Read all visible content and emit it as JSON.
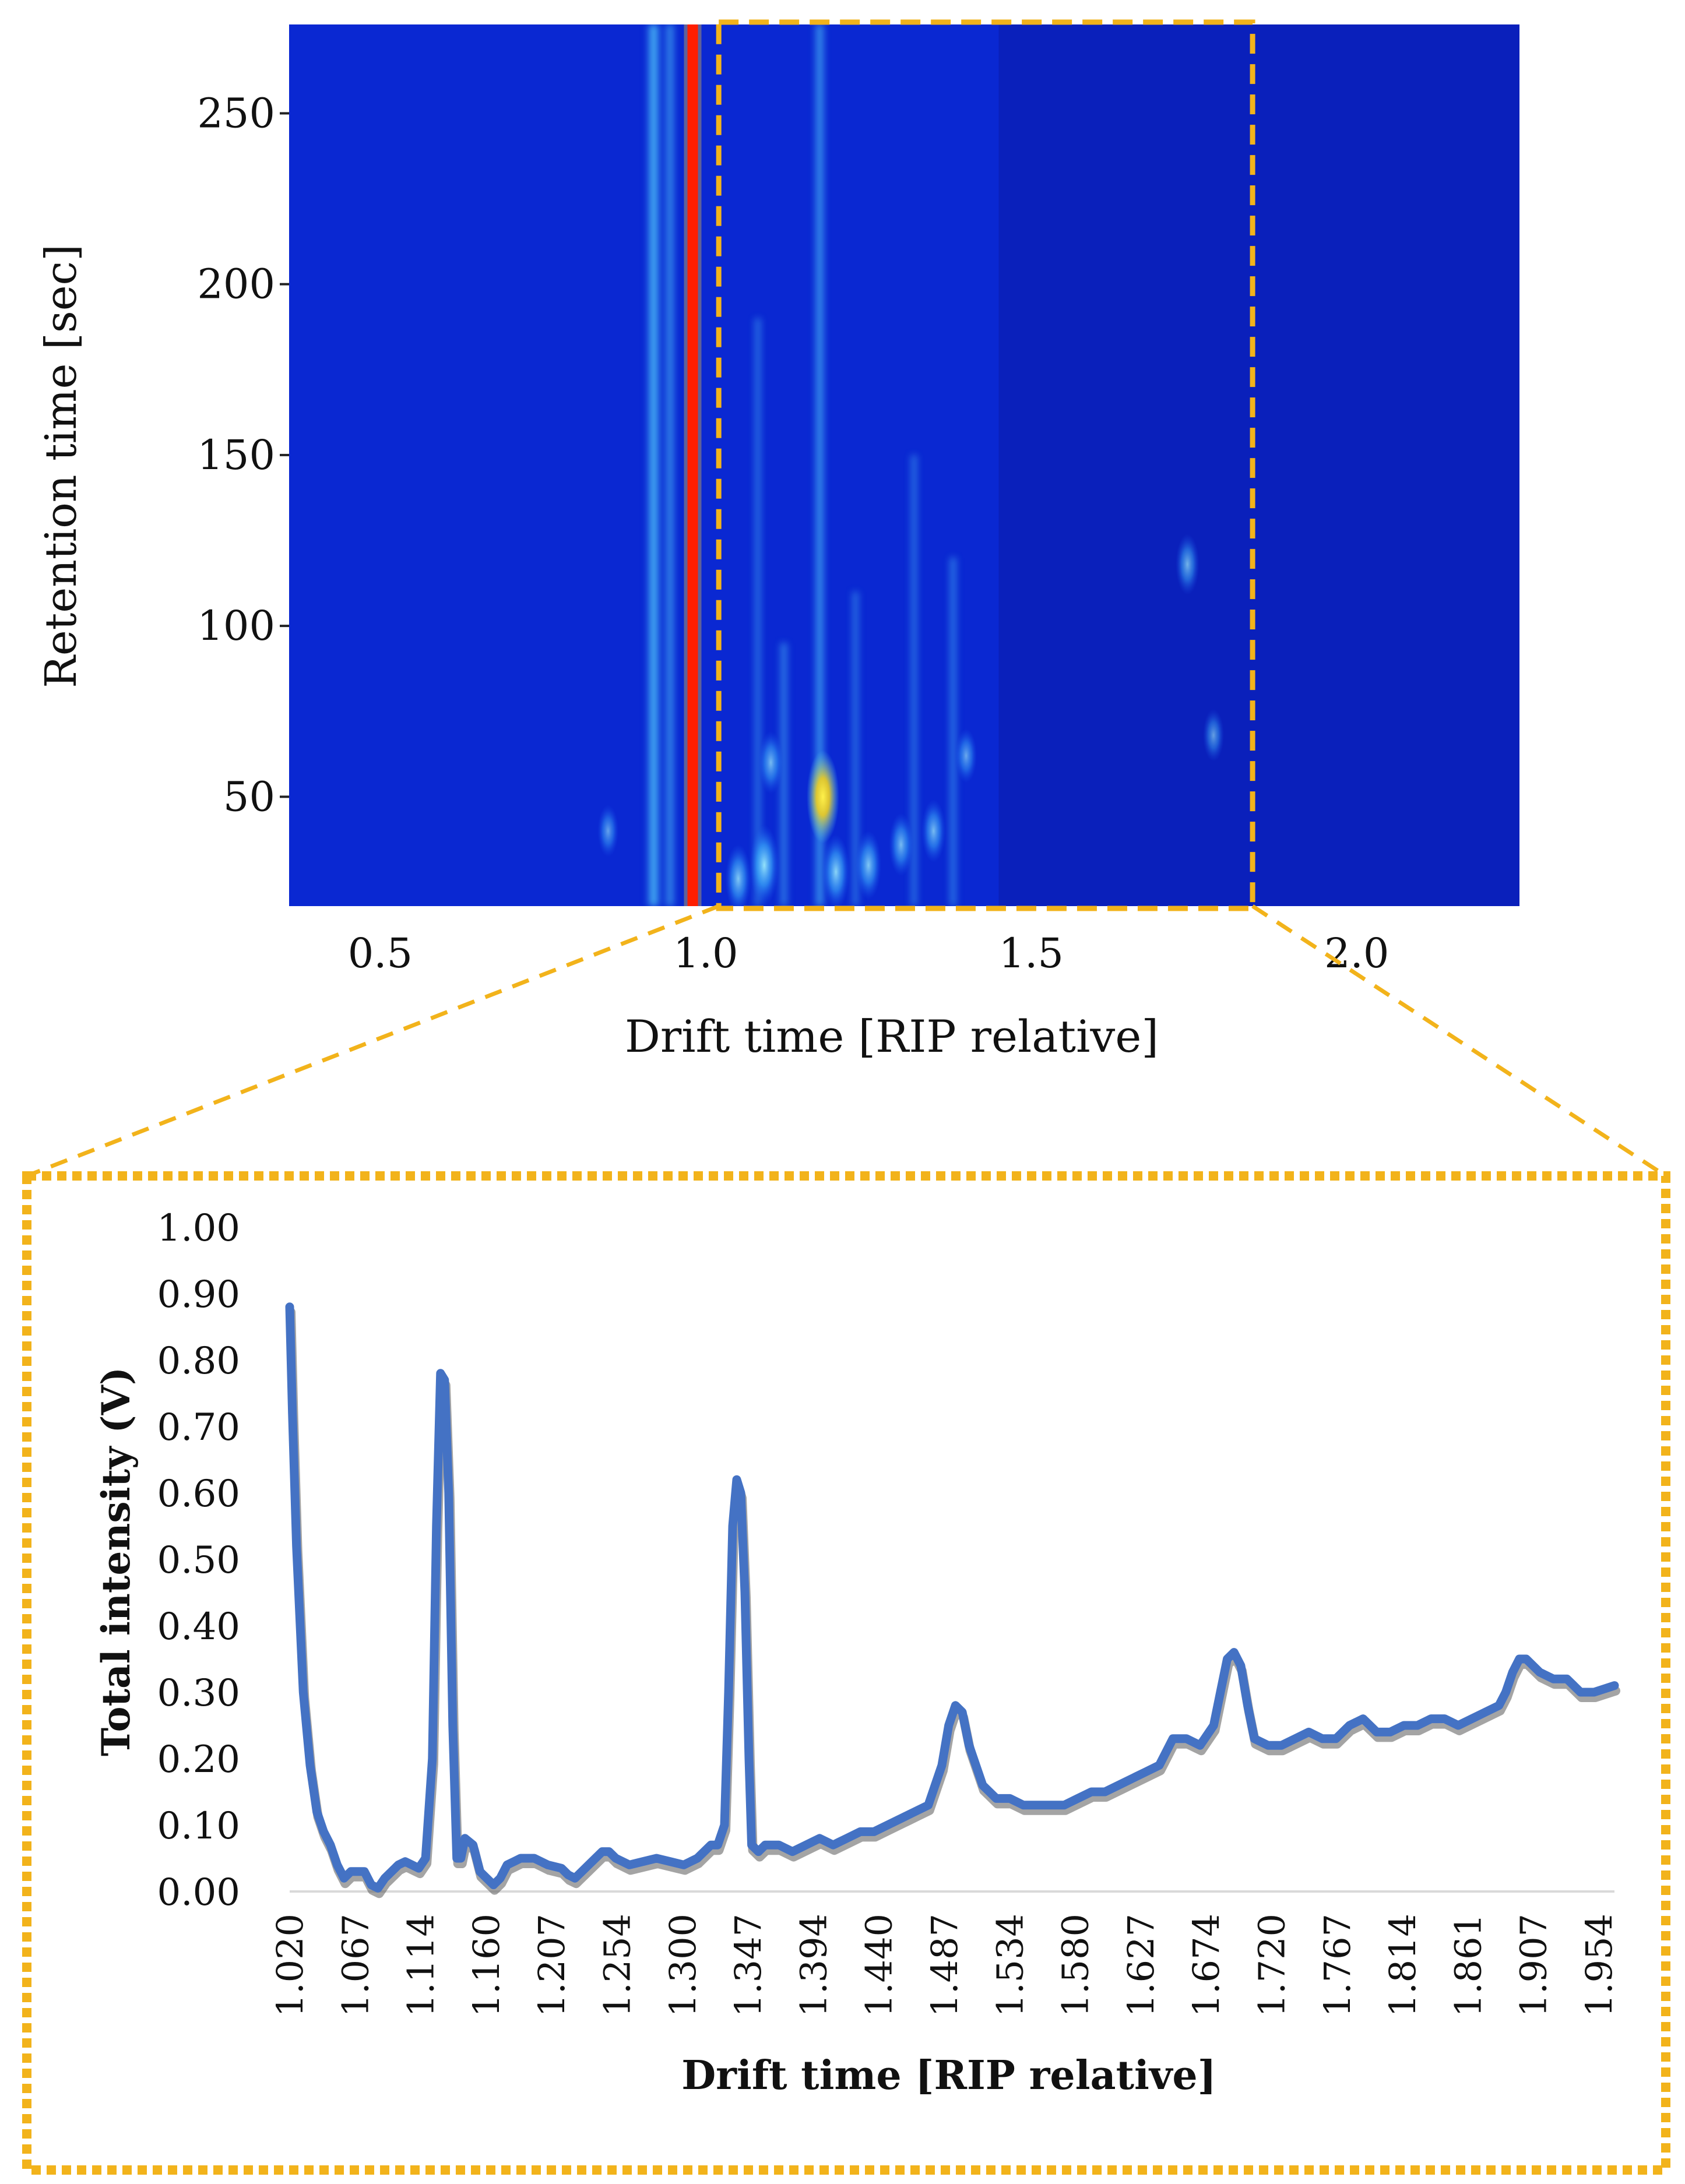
{
  "chart_data": [
    {
      "type": "heatmap",
      "title": "",
      "xlabel": "Drift time [RIP relative]",
      "ylabel": "Retention time [sec]",
      "xlim": [
        0.36,
        2.25
      ],
      "ylim": [
        18,
        276
      ],
      "xticks": [
        0.5,
        1.0,
        1.5,
        2.0
      ],
      "xtick_labels": [
        "0.5",
        "1.0",
        "1.5",
        "2.0"
      ],
      "yticks": [
        50,
        100,
        150,
        200,
        250
      ],
      "ytick_labels": [
        "50",
        "100",
        "150",
        "200",
        "250"
      ],
      "colors": {
        "background": "#0a28d2",
        "region_dark": "#0a1fb8",
        "rip": "#ff1e00",
        "signal_strong": "#66f2ff",
        "signal_mid": "#2fa6ff",
        "hotspot": "#f2d21e"
      },
      "rip_line": {
        "x": 0.98,
        "y_range": [
          18,
          276
        ]
      },
      "streaks": [
        {
          "x": 0.92,
          "y_range": [
            18,
            276
          ],
          "intensity": 0.9
        },
        {
          "x": 0.945,
          "y_range": [
            18,
            276
          ],
          "intensity": 0.55
        },
        {
          "x": 1.175,
          "y_range": [
            18,
            276
          ],
          "intensity": 0.6
        },
        {
          "x": 1.08,
          "y_range": [
            18,
            190
          ],
          "intensity": 0.3
        },
        {
          "x": 1.32,
          "y_range": [
            18,
            150
          ],
          "intensity": 0.3
        },
        {
          "x": 1.38,
          "y_range": [
            18,
            120
          ],
          "intensity": 0.35
        },
        {
          "x": 1.23,
          "y_range": [
            18,
            110
          ],
          "intensity": 0.3
        },
        {
          "x": 1.12,
          "y_range": [
            18,
            95
          ],
          "intensity": 0.4
        }
      ],
      "spots": [
        {
          "x": 1.18,
          "y": 50,
          "intensity": 1.0,
          "hot": true
        },
        {
          "x": 1.1,
          "y": 60,
          "intensity": 0.5
        },
        {
          "x": 1.09,
          "y": 30,
          "intensity": 0.8
        },
        {
          "x": 1.2,
          "y": 28,
          "intensity": 0.7
        },
        {
          "x": 1.25,
          "y": 30,
          "intensity": 0.6
        },
        {
          "x": 1.3,
          "y": 36,
          "intensity": 0.5
        },
        {
          "x": 1.35,
          "y": 40,
          "intensity": 0.5
        },
        {
          "x": 1.4,
          "y": 62,
          "intensity": 0.35
        },
        {
          "x": 1.05,
          "y": 26,
          "intensity": 0.6
        },
        {
          "x": 1.74,
          "y": 118,
          "intensity": 0.45
        },
        {
          "x": 1.78,
          "y": 68,
          "intensity": 0.3
        },
        {
          "x": 0.85,
          "y": 40,
          "intensity": 0.3
        }
      ],
      "highlight_box": {
        "x_range": [
          1.02,
          1.84
        ],
        "y_range": [
          18,
          276
        ],
        "color": "#f2b31b"
      }
    },
    {
      "type": "line",
      "title": "",
      "xlabel": "Drift time [RIP relative]",
      "ylabel": "Total intensity (V)",
      "xlim": [
        1.02,
        1.995
      ],
      "ylim": [
        0.0,
        1.0
      ],
      "yticks": [
        0.0,
        0.1,
        0.2,
        0.3,
        0.4,
        0.5,
        0.6,
        0.7,
        0.8,
        0.9,
        1.0
      ],
      "ytick_labels": [
        "0.00",
        "0.10",
        "0.20",
        "0.30",
        "0.40",
        "0.50",
        "0.60",
        "0.70",
        "0.80",
        "0.90",
        "1.00"
      ],
      "xtick_labels": [
        "1.020",
        "1.067",
        "1.114",
        "1.160",
        "1.207",
        "1.254",
        "1.300",
        "1.347",
        "1.394",
        "1.440",
        "1.487",
        "1.534",
        "1.580",
        "1.627",
        "1.674",
        "1.720",
        "1.767",
        "1.814",
        "1.861",
        "1.907",
        "1.954"
      ],
      "series": [
        {
          "name": "Total intensity",
          "color": "#4472c4",
          "x": [
            1.02,
            1.022,
            1.025,
            1.03,
            1.035,
            1.04,
            1.045,
            1.05,
            1.055,
            1.06,
            1.065,
            1.07,
            1.075,
            1.08,
            1.085,
            1.09,
            1.1,
            1.105,
            1.11,
            1.115,
            1.12,
            1.125,
            1.128,
            1.131,
            1.134,
            1.137,
            1.14,
            1.143,
            1.146,
            1.149,
            1.155,
            1.16,
            1.165,
            1.17,
            1.175,
            1.18,
            1.185,
            1.19,
            1.2,
            1.21,
            1.22,
            1.225,
            1.23,
            1.24,
            1.25,
            1.255,
            1.26,
            1.27,
            1.28,
            1.29,
            1.3,
            1.31,
            1.32,
            1.33,
            1.335,
            1.34,
            1.343,
            1.346,
            1.349,
            1.352,
            1.355,
            1.358,
            1.36,
            1.365,
            1.37,
            1.38,
            1.39,
            1.4,
            1.41,
            1.42,
            1.43,
            1.44,
            1.45,
            1.46,
            1.47,
            1.48,
            1.49,
            1.5,
            1.505,
            1.51,
            1.515,
            1.52,
            1.53,
            1.54,
            1.55,
            1.56,
            1.57,
            1.58,
            1.59,
            1.6,
            1.61,
            1.62,
            1.63,
            1.64,
            1.65,
            1.66,
            1.665,
            1.67,
            1.675,
            1.68,
            1.69,
            1.7,
            1.705,
            1.71,
            1.715,
            1.72,
            1.725,
            1.73,
            1.74,
            1.75,
            1.76,
            1.77,
            1.78,
            1.79,
            1.8,
            1.81,
            1.82,
            1.83,
            1.84,
            1.85,
            1.86,
            1.87,
            1.88,
            1.89,
            1.9,
            1.91,
            1.915,
            1.92,
            1.925,
            1.93,
            1.94,
            1.95,
            1.96,
            1.97,
            1.98,
            1.995
          ],
          "y": [
            0.88,
            0.72,
            0.52,
            0.3,
            0.19,
            0.12,
            0.09,
            0.07,
            0.04,
            0.02,
            0.03,
            0.03,
            0.03,
            0.01,
            0.005,
            0.02,
            0.04,
            0.045,
            0.04,
            0.035,
            0.05,
            0.2,
            0.55,
            0.78,
            0.77,
            0.6,
            0.25,
            0.05,
            0.05,
            0.08,
            0.07,
            0.03,
            0.02,
            0.01,
            0.02,
            0.04,
            0.045,
            0.05,
            0.05,
            0.04,
            0.035,
            0.025,
            0.02,
            0.04,
            0.06,
            0.06,
            0.05,
            0.04,
            0.045,
            0.05,
            0.045,
            0.04,
            0.05,
            0.07,
            0.07,
            0.1,
            0.3,
            0.55,
            0.62,
            0.6,
            0.45,
            0.2,
            0.07,
            0.06,
            0.07,
            0.07,
            0.06,
            0.07,
            0.08,
            0.07,
            0.08,
            0.09,
            0.09,
            0.1,
            0.11,
            0.12,
            0.13,
            0.19,
            0.25,
            0.28,
            0.27,
            0.22,
            0.16,
            0.14,
            0.14,
            0.13,
            0.13,
            0.13,
            0.13,
            0.14,
            0.15,
            0.15,
            0.16,
            0.17,
            0.18,
            0.19,
            0.21,
            0.23,
            0.23,
            0.23,
            0.22,
            0.25,
            0.3,
            0.35,
            0.36,
            0.34,
            0.28,
            0.23,
            0.22,
            0.22,
            0.23,
            0.24,
            0.23,
            0.23,
            0.25,
            0.26,
            0.24,
            0.24,
            0.25,
            0.25,
            0.26,
            0.26,
            0.25,
            0.26,
            0.27,
            0.28,
            0.3,
            0.33,
            0.35,
            0.35,
            0.33,
            0.32,
            0.32,
            0.3,
            0.3,
            0.31
          ]
        }
      ],
      "frame": {
        "style": "dotted",
        "color": "#f2b31b"
      }
    }
  ]
}
